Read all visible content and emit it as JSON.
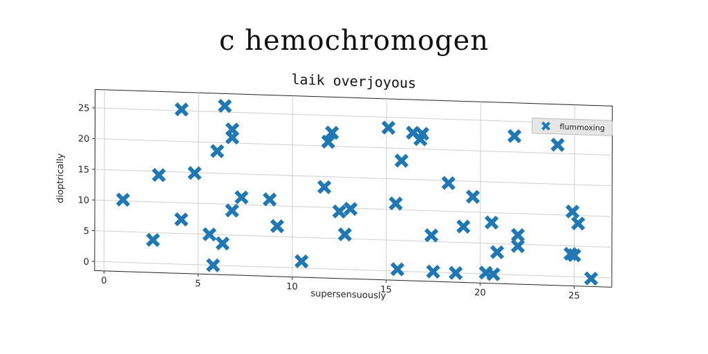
{
  "page_title": "c hemochromogen",
  "chart_data": {
    "type": "scatter",
    "title": "laik overjoyous",
    "xlabel": "supersensuously",
    "ylabel": "dioptrically",
    "xlim": [
      -0.5,
      27
    ],
    "ylim": [
      -1.5,
      28
    ],
    "x_ticks": [
      0,
      5,
      10,
      15,
      20,
      25
    ],
    "y_ticks": [
      0,
      5,
      10,
      15,
      20,
      25
    ],
    "grid": true,
    "legend_position": "top-right",
    "marker": "x",
    "color": "#1f77b4",
    "series": [
      {
        "name": "flummoxing",
        "points": [
          [
            1.0,
            10.2
          ],
          [
            2.6,
            3.8
          ],
          [
            2.9,
            14.4
          ],
          [
            4.1,
            25.2
          ],
          [
            4.1,
            7.3
          ],
          [
            4.8,
            14.9
          ],
          [
            5.6,
            5.0
          ],
          [
            5.8,
            0.0
          ],
          [
            6.0,
            18.6
          ],
          [
            6.3,
            3.6
          ],
          [
            6.4,
            26.0
          ],
          [
            6.8,
            20.9
          ],
          [
            6.8,
            22.2
          ],
          [
            6.8,
            9.0
          ],
          [
            7.3,
            11.2
          ],
          [
            8.8,
            11.0
          ],
          [
            9.2,
            6.7
          ],
          [
            10.5,
            1.1
          ],
          [
            11.7,
            13.3
          ],
          [
            11.9,
            20.7
          ],
          [
            12.1,
            22.2
          ],
          [
            12.5,
            9.4
          ],
          [
            12.8,
            5.7
          ],
          [
            13.1,
            9.9
          ],
          [
            15.1,
            23.3
          ],
          [
            15.5,
            11.0
          ],
          [
            15.6,
            0.3
          ],
          [
            15.8,
            18.0
          ],
          [
            16.4,
            22.6
          ],
          [
            16.8,
            21.6
          ],
          [
            16.9,
            22.5
          ],
          [
            17.4,
            6.0
          ],
          [
            17.5,
            0.1
          ],
          [
            18.3,
            14.6
          ],
          [
            18.7,
            0.0
          ],
          [
            19.1,
            7.6
          ],
          [
            19.6,
            12.5
          ],
          [
            20.3,
            0.2
          ],
          [
            20.6,
            8.4
          ],
          [
            20.7,
            0.0
          ],
          [
            20.9,
            3.6
          ],
          [
            21.8,
            22.6
          ],
          [
            22.0,
            6.5
          ],
          [
            22.0,
            4.7
          ],
          [
            24.1,
            21.4
          ],
          [
            24.8,
            3.7
          ],
          [
            24.9,
            10.6
          ],
          [
            25.0,
            3.5
          ],
          [
            25.2,
            8.7
          ],
          [
            25.9,
            -0.2
          ]
        ]
      }
    ]
  }
}
